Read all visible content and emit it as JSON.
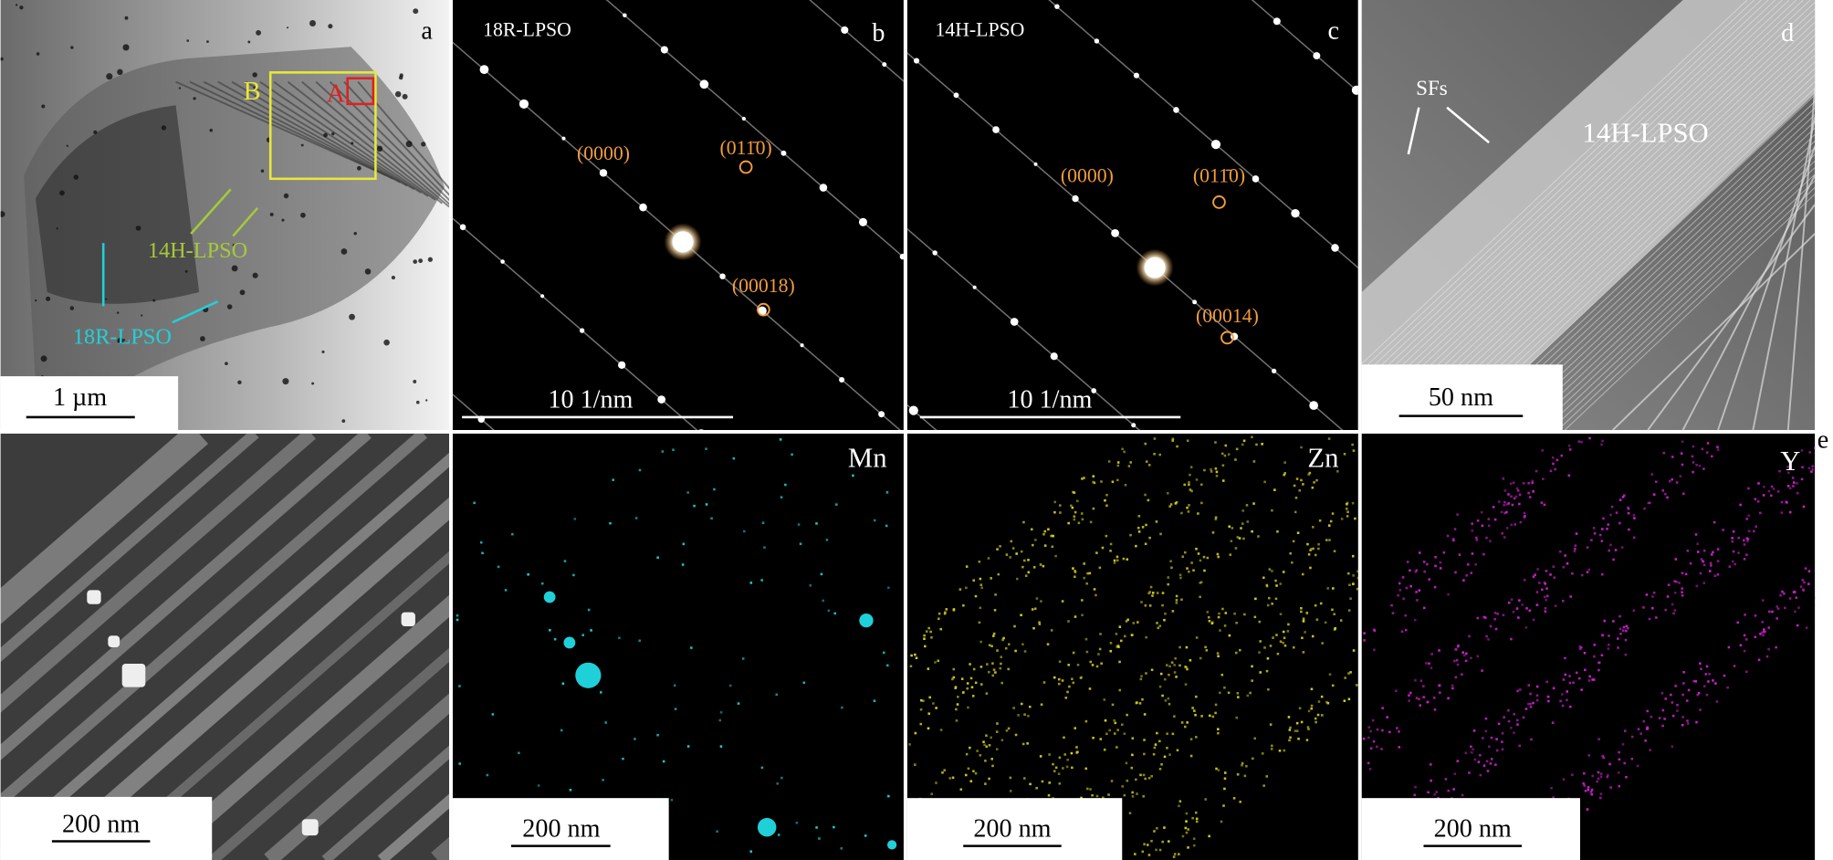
{
  "panels": [
    {
      "label": "a",
      "scale_bar": "1 µm",
      "region_a": "A",
      "region_b": "B",
      "phase_1": "14H-LPSO",
      "phase_2": "18R-LPSO"
    },
    {
      "label": "b",
      "title": "18R-LPSO",
      "scale_bar": "10 1/nm",
      "spots": [
        "(0000)",
        "(011̄0)",
        "(00018)"
      ]
    },
    {
      "label": "c",
      "title": "14H-LPSO",
      "scale_bar": "10 1/nm",
      "spots": [
        "(0000)",
        "(011̄0)",
        "(00014)"
      ]
    },
    {
      "label": "d",
      "scale_bar": "50 nm",
      "defect": "SFs",
      "phase": "14H-LPSO"
    },
    {
      "label": "e",
      "scale_bar": "200 nm"
    },
    {
      "element": "Mn",
      "scale_bar": "200 nm"
    },
    {
      "element": "Zn",
      "scale_bar": "200 nm"
    },
    {
      "element": "Y",
      "scale_bar": "200 nm"
    }
  ]
}
